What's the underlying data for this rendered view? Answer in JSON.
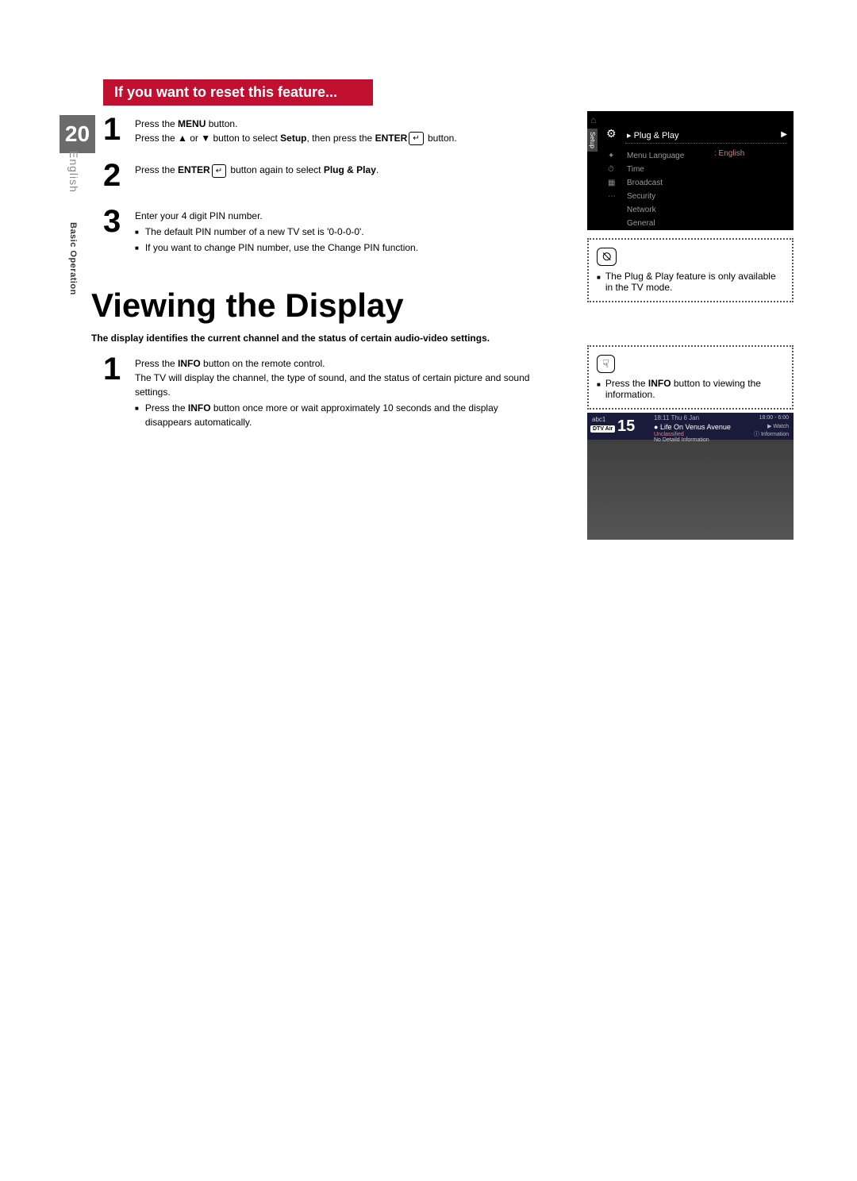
{
  "page_number": "20",
  "side_label_language": "English",
  "side_label_section": "Basic Operation",
  "header_bar": "If you want to reset this feature...",
  "step1": {
    "num": "1",
    "line1_a": "Press the ",
    "line1_b": "MENU",
    "line1_c": " button.",
    "line2_a": "Press the ▲ or ▼ button to select ",
    "line2_b": "Setup",
    "line2_c": ", then press the ",
    "line2_d": "ENTER",
    "line2_e": " button.",
    "enter_icon": "↵"
  },
  "step2": {
    "num": "2",
    "a": "Press the ",
    "b": "ENTER",
    "c": " button again to select ",
    "d": "Plug & Play",
    "e": "."
  },
  "step3": {
    "num": "3",
    "line1": "Enter your 4 digit PIN number.",
    "bullet1": "The default PIN number of a new TV set is '0-0-0-0'.",
    "bullet2": "If you want to change PIN number, use the Change PIN function."
  },
  "main_heading": "Viewing the Display",
  "intro": "The display identifies the current channel and the status of certain audio-video settings.",
  "vstep1": {
    "num": "1",
    "l1a": "Press the ",
    "l1b": "INFO",
    "l1c": " button on the remote control.",
    "l2": "The TV will display the channel, the type of sound, and the status of certain picture and sound settings.",
    "b1a": "Press the ",
    "b1b": "INFO",
    "b1c": " button once more or wait approximately 10 seconds and the display disappears automatically."
  },
  "menu": {
    "setup": "Setup",
    "title": "Plug & Play",
    "items": [
      "Menu Language",
      "Time",
      "Broadcast",
      "Security",
      "Network",
      "General"
    ],
    "lang_label": ": English"
  },
  "note1_icon": "⦰",
  "note1_text": "The Plug & Play feature is only available in the TV mode.",
  "note2_icon": "☟",
  "note2_a": "Press the ",
  "note2_b": "INFO",
  "note2_c": " button to viewing the information.",
  "info_panel": {
    "ch": "abc1",
    "dtv": "DTV Air",
    "num": "15",
    "time": "18:11 Thu 6 Jan",
    "prog_bullet": "●",
    "prog": "Life On Venus Avenue",
    "sub": "Unclassified",
    "sub2": "No Detaild Information",
    "tr_time": "18:00 - 6:00",
    "tr_watch": "▶ Watch",
    "tr_info": "ⓘ Information"
  },
  "colors": {
    "header_bg": "#c01030",
    "tab_bg": "#6b6b6b"
  }
}
